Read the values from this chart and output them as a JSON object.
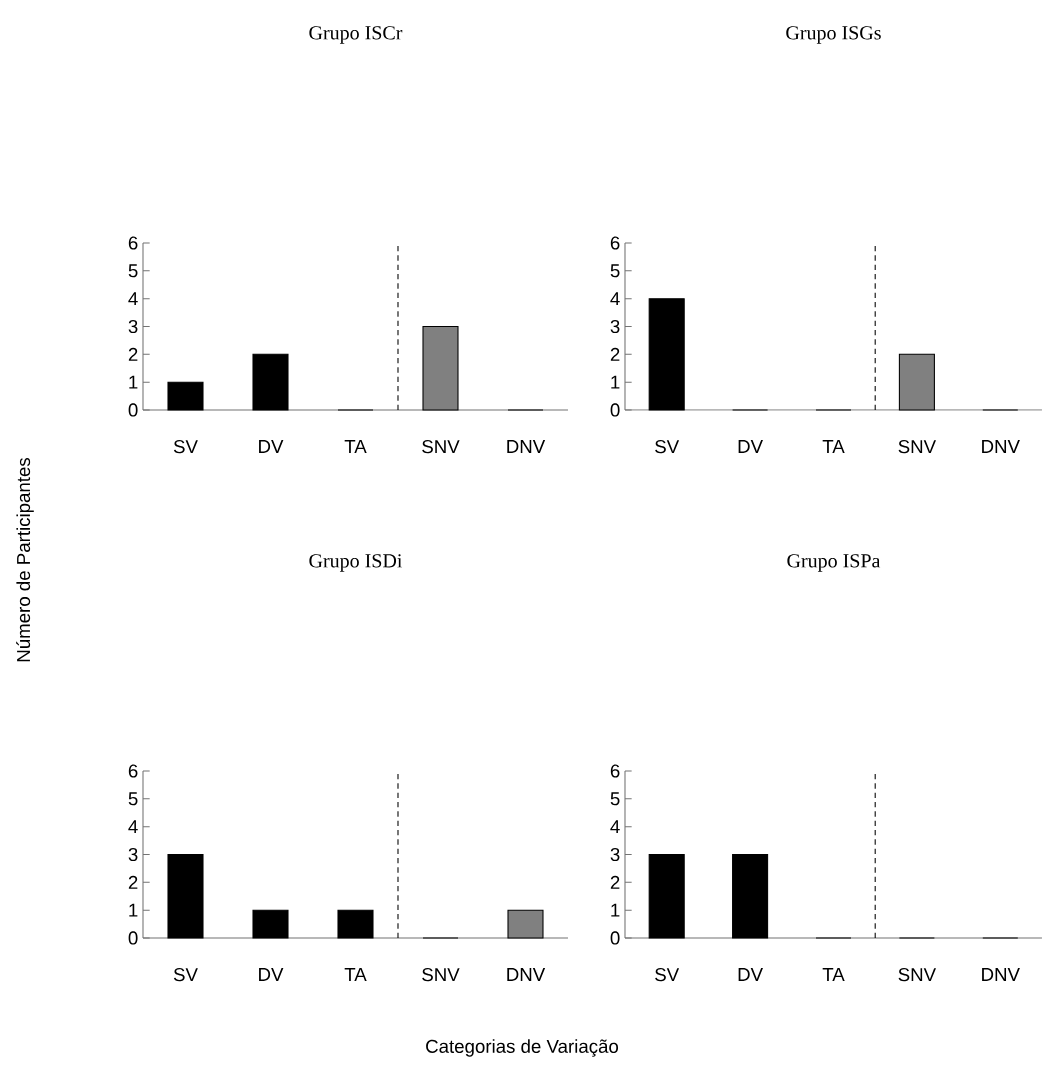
{
  "chart_data": [
    {
      "type": "bar",
      "title": "Grupo ISCr",
      "ylabel": "Número de Participantes",
      "categories": [
        "SV",
        "DV",
        "TA",
        "SNV",
        "DNV"
      ],
      "values": [
        1,
        2,
        0,
        3,
        0
      ],
      "colors": [
        "#000000",
        "#000000",
        "#000000",
        "#808080",
        "#808080"
      ],
      "ylim": [
        0,
        6
      ],
      "yticks": [
        0,
        1,
        2,
        3,
        4,
        5,
        6
      ]
    },
    {
      "type": "bar",
      "title": "Grupo ISGs",
      "categories": [
        "SV",
        "DV",
        "TA",
        "SNV",
        "DNV"
      ],
      "values": [
        4,
        0,
        0,
        2,
        0
      ],
      "colors": [
        "#000000",
        "#000000",
        "#000000",
        "#808080",
        "#808080"
      ],
      "ylim": [
        0,
        6
      ],
      "yticks": [
        0,
        1,
        2,
        3,
        4,
        5,
        6
      ]
    },
    {
      "type": "bar",
      "title": "Grupo ISDi",
      "xlabel": "Categorias de Variação",
      "categories": [
        "SV",
        "DV",
        "TA",
        "SNV",
        "DNV"
      ],
      "values": [
        3,
        1,
        1,
        0,
        1
      ],
      "colors": [
        "#000000",
        "#000000",
        "#000000",
        "#808080",
        "#808080"
      ],
      "ylim": [
        0,
        6
      ],
      "yticks": [
        0,
        1,
        2,
        3,
        4,
        5,
        6
      ]
    },
    {
      "type": "bar",
      "title": "Grupo ISPa",
      "categories": [
        "SV",
        "DV",
        "TA",
        "SNV",
        "DNV"
      ],
      "values": [
        3,
        3,
        0,
        0,
        0
      ],
      "colors": [
        "#000000",
        "#000000",
        "#000000",
        "#808080",
        "#808080"
      ],
      "ylim": [
        0,
        6
      ],
      "yticks": [
        0,
        1,
        2,
        3,
        4,
        5,
        6
      ]
    }
  ]
}
